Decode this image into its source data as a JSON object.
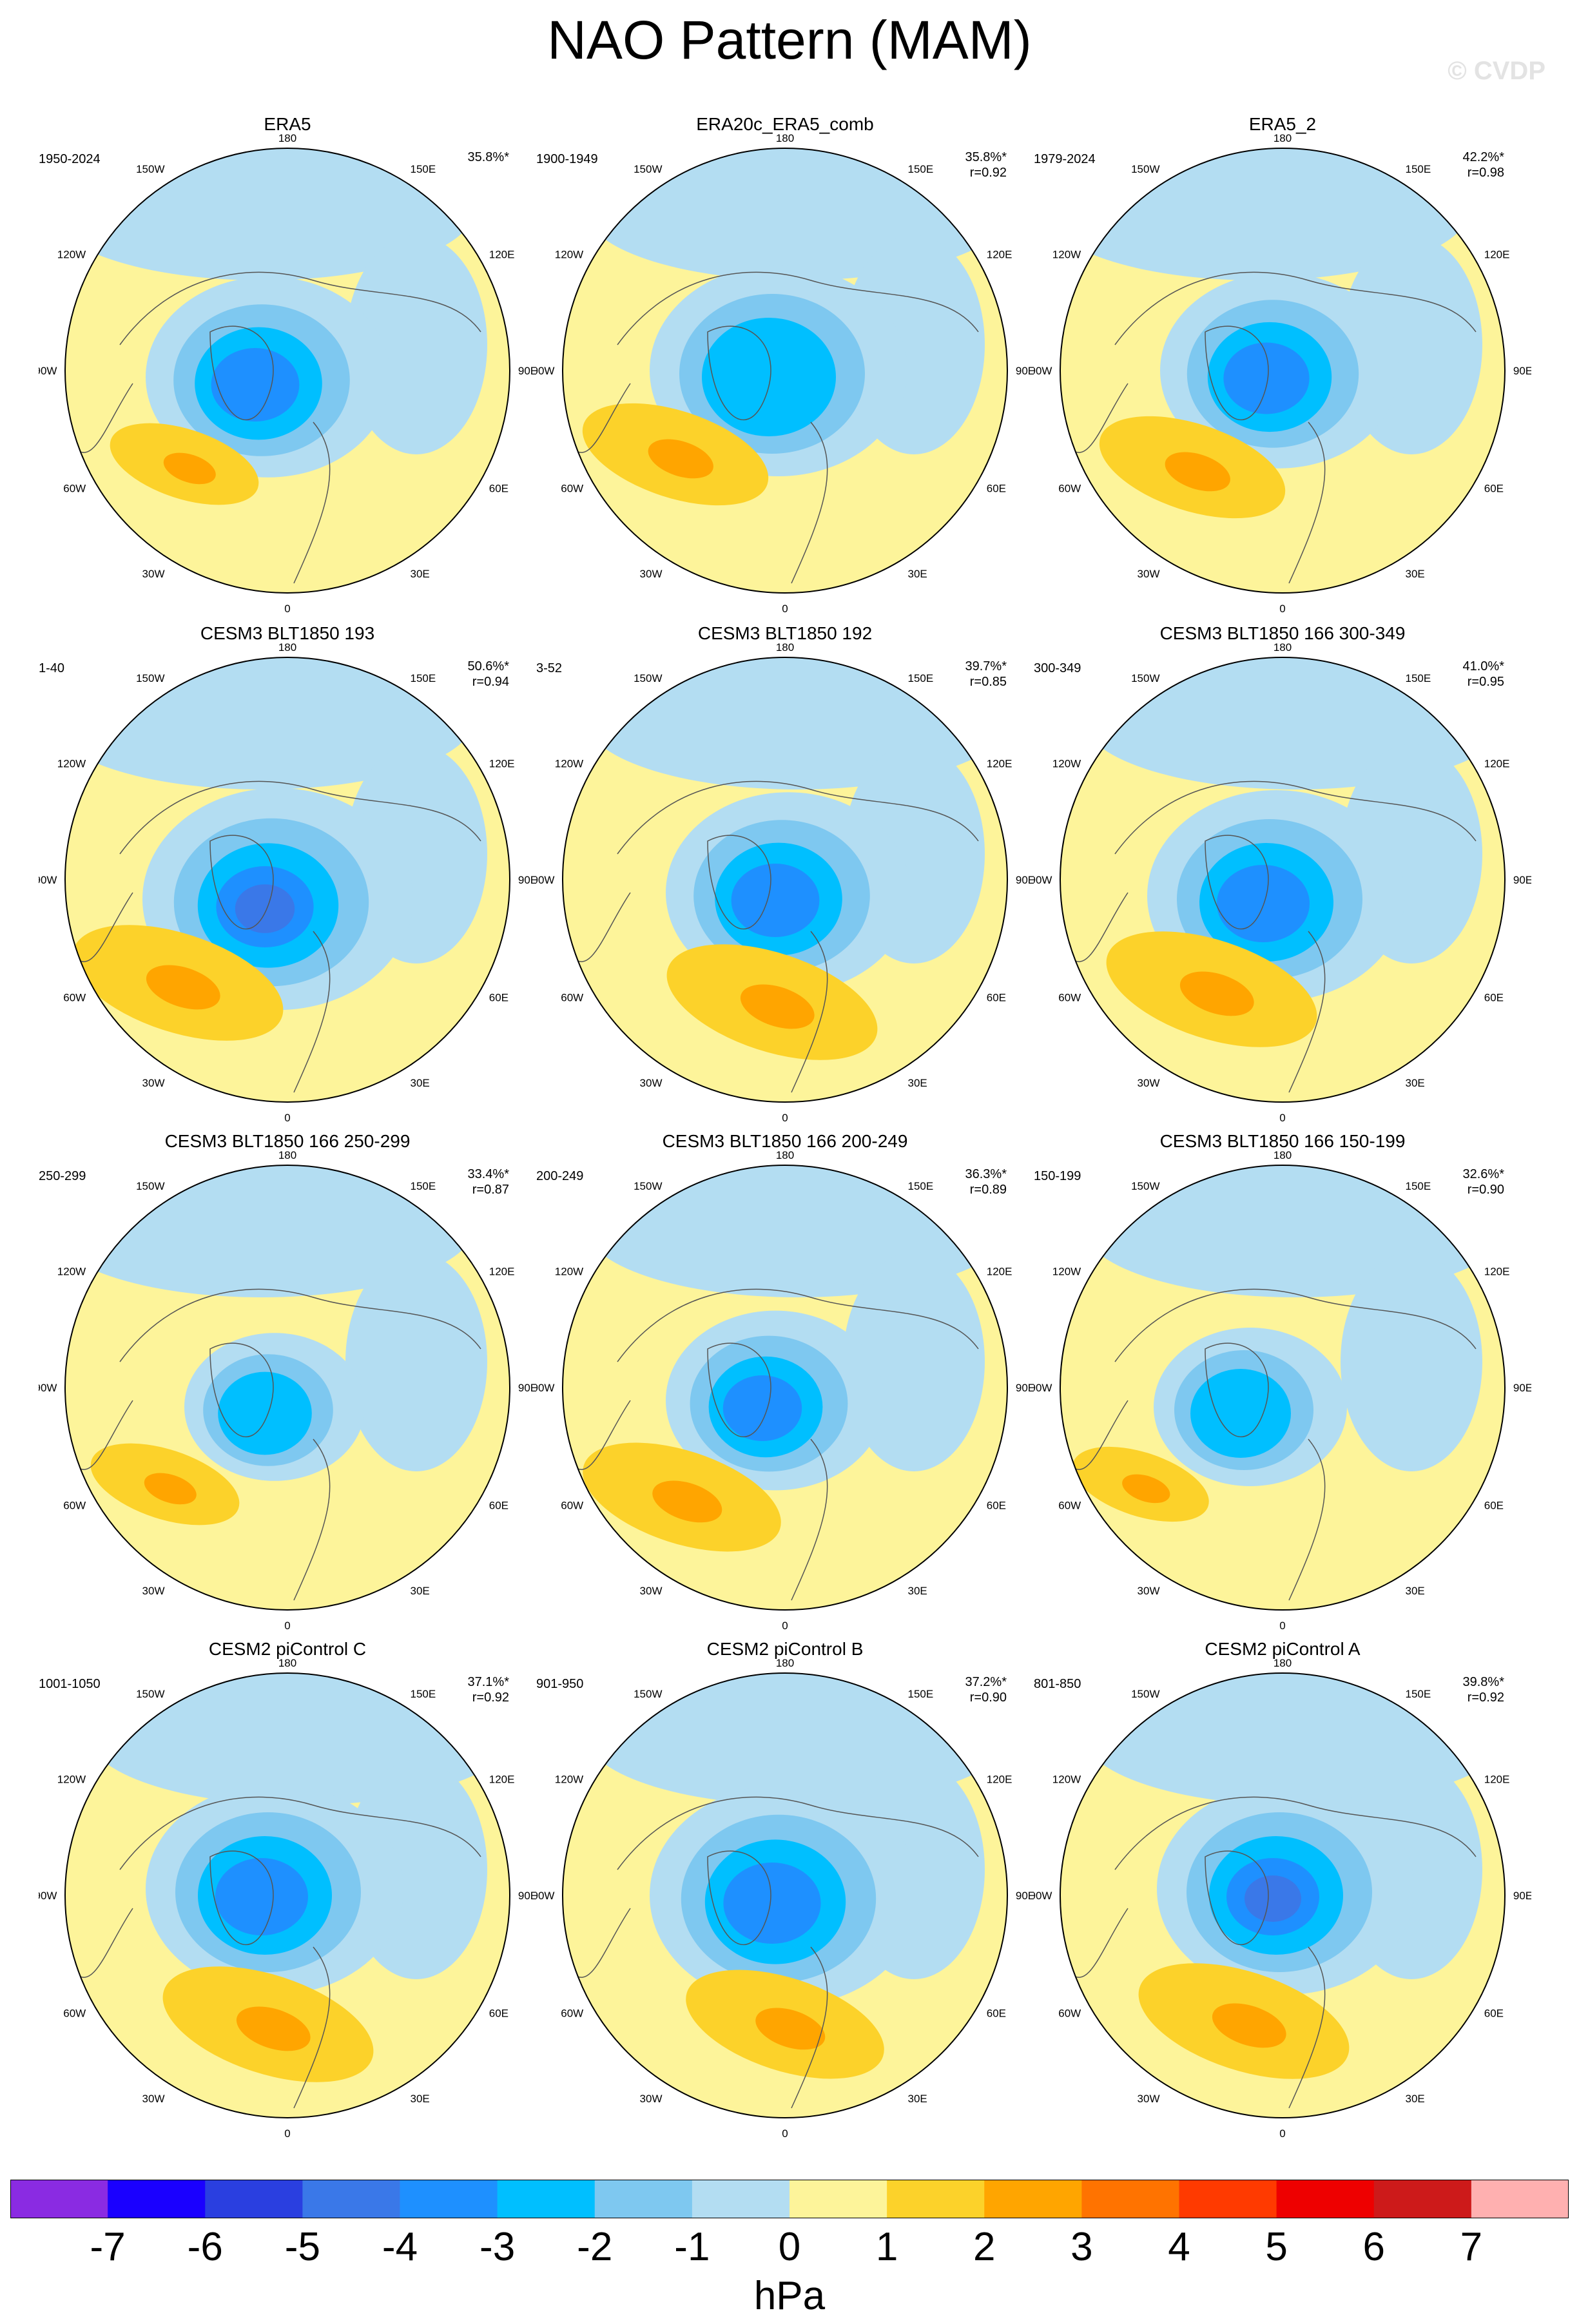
{
  "title": "NAO Pattern (MAM)",
  "watermark": "© CVDP",
  "ticks": {
    "top": "180",
    "bottom": "0",
    "left": "90W",
    "right": "90E",
    "upper_left_1": "150W",
    "upper_left_2": "120W",
    "upper_right_1": "150E",
    "upper_right_2": "120E",
    "lower_left_1": "60W",
    "lower_left_2": "30W",
    "lower_right_1": "60E",
    "lower_right_2": "30E"
  },
  "panels": [
    {
      "title": "ERA5",
      "period": "1950-2024",
      "pct": "35.8%*",
      "r": ""
    },
    {
      "title": "ERA20c_ERA5_comb",
      "period": "1900-1949",
      "pct": "35.8%*",
      "r": "r=0.92"
    },
    {
      "title": "ERA5_2",
      "period": "1979-2024",
      "pct": "42.2%*",
      "r": "r=0.98"
    },
    {
      "title": "CESM3 BLT1850 193",
      "period": "1-40",
      "pct": "50.6%*",
      "r": "r=0.94"
    },
    {
      "title": "CESM3 BLT1850 192",
      "period": "3-52",
      "pct": "39.7%*",
      "r": "r=0.85"
    },
    {
      "title": "CESM3 BLT1850 166 300-349",
      "period": "300-349",
      "pct": "41.0%*",
      "r": "r=0.95"
    },
    {
      "title": "CESM3 BLT1850 166 250-299",
      "period": "250-299",
      "pct": "33.4%*",
      "r": "r=0.87"
    },
    {
      "title": "CESM3 BLT1850 166 200-249",
      "period": "200-249",
      "pct": "36.3%*",
      "r": "r=0.89"
    },
    {
      "title": "CESM3 BLT1850 166 150-199",
      "period": "150-199",
      "pct": "32.6%*",
      "r": "r=0.90"
    },
    {
      "title": "CESM2 piControl C",
      "period": "1001-1050",
      "pct": "37.1%*",
      "r": "r=0.92"
    },
    {
      "title": "CESM2 piControl B",
      "period": "901-950",
      "pct": "37.2%*",
      "r": "r=0.90"
    },
    {
      "title": "CESM2 piControl A",
      "period": "801-850",
      "pct": "39.8%*",
      "r": "r=0.92"
    }
  ],
  "colorbar": {
    "colors": [
      "#8a2be2",
      "#1a00ff",
      "#2a3fe0",
      "#3a78e8",
      "#1e90ff",
      "#00bfff",
      "#7ec8f0",
      "#b3ddf2",
      "#fdf49a",
      "#fcd22a",
      "#ffa500",
      "#ff7300",
      "#ff3a00",
      "#ee0000",
      "#cd1a1a",
      "#ffb0b0"
    ],
    "labels": [
      "-7",
      "-6",
      "-5",
      "-4",
      "-3",
      "-2",
      "-1",
      "0",
      "1",
      "2",
      "3",
      "4",
      "5",
      "6",
      "7"
    ],
    "units": "hPa"
  }
}
